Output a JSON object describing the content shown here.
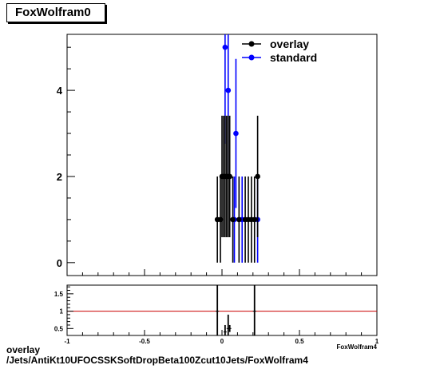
{
  "title": "FoxWolfram0",
  "footer": {
    "line1": "overlay",
    "line2": "/Jets/AntiKt10UFOCSSKSoftDropBeta100Zcut10Jets/FoxWolfram4"
  },
  "colors": {
    "overlay": "#000000",
    "standard": "#0000ff",
    "ratio_line": "#cc0000"
  },
  "chart_data": [
    {
      "type": "scatter",
      "legend": {
        "placement": "top-right",
        "entries": [
          "overlay",
          "standard"
        ]
      },
      "xlim": [
        -1,
        1
      ],
      "ylim": [
        -0.3,
        5.3
      ],
      "yticks": [
        0,
        2,
        4
      ],
      "xlabel_partial": "FoxWolfram4",
      "series": [
        {
          "name": "overlay",
          "x": [
            -0.03,
            -0.01,
            0.0,
            0.01,
            0.02,
            0.03,
            0.04,
            0.05,
            0.07,
            0.11,
            0.15,
            0.17,
            0.19,
            0.21,
            0.23
          ],
          "y": [
            1,
            1,
            2,
            2,
            2,
            2,
            2,
            2,
            1,
            1,
            1,
            1,
            1,
            1,
            2
          ],
          "yerr": [
            1,
            1,
            1.41,
            1.41,
            1.41,
            1.41,
            1.41,
            1.41,
            1,
            1,
            1,
            1,
            1,
            1,
            1.41
          ]
        },
        {
          "name": "standard",
          "x": [
            0.02,
            0.04,
            0.08,
            0.09,
            0.13,
            0.23
          ],
          "y": [
            5,
            4,
            1,
            3,
            1,
            1
          ],
          "yerr": [
            2.24,
            2.0,
            1,
            1.73,
            1,
            1
          ]
        }
      ]
    },
    {
      "type": "scatter",
      "xlim": [
        -1,
        1
      ],
      "ylim": [
        0.3,
        1.75
      ],
      "xticks": [
        "-1",
        "-0.5",
        "0",
        "0.5",
        "1"
      ],
      "yticks": [
        "0.5",
        "1",
        "1.5"
      ],
      "reference_line": 1,
      "series": [
        {
          "name": "ratio",
          "x": [
            -0.03,
            0.02,
            0.04,
            0.05,
            0.21
          ],
          "y": [
            1.0,
            0.4,
            0.5,
            0.5,
            1.0
          ],
          "yerr": [
            0.8,
            0.2,
            0.4,
            0.1,
            0.8
          ]
        }
      ]
    }
  ]
}
